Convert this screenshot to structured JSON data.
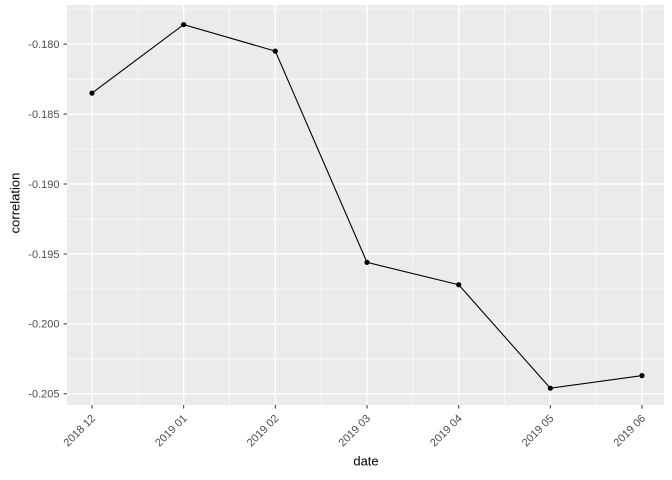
{
  "chart_data": {
    "type": "line",
    "xlabel": "date",
    "ylabel": "correlation",
    "categories": [
      "2018 12",
      "2019 01",
      "2019 02",
      "2019 03",
      "2019 04",
      "2019 05",
      "2019 06"
    ],
    "series": [
      {
        "name": "correlation",
        "values": [
          -0.1835,
          -0.1786,
          -0.1805,
          -0.1956,
          -0.1972,
          -0.2046,
          -0.2037
        ]
      }
    ],
    "yticks": [
      -0.18,
      -0.185,
      -0.19,
      -0.195,
      -0.2,
      -0.205
    ],
    "ytick_decimals": 3,
    "ylim": [
      -0.2058,
      -0.1772
    ],
    "grid": "major-and-minor",
    "legend": false,
    "marker": "filled-circle",
    "x_label_rotation_deg": 45,
    "colors": {
      "figure_background": "#FFFFFF",
      "panel_background": "#EBEBEB",
      "grid_major": "#FFFFFF",
      "grid_minor": "#FFFFFF",
      "line": "#000000",
      "point": "#000000",
      "axis_text": "#4D4D4D",
      "axis_tick": "#333333",
      "axis_title": "#000000"
    }
  }
}
